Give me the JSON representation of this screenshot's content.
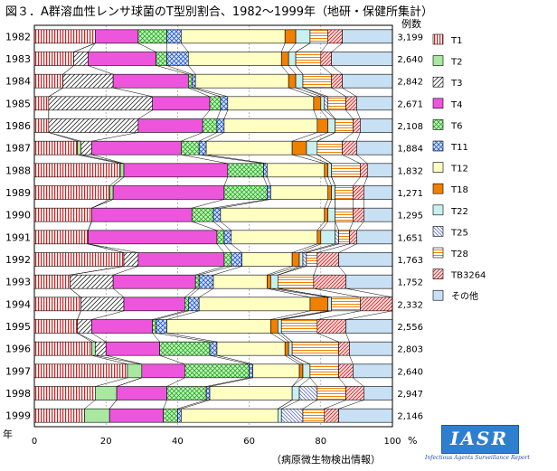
{
  "logo": {
    "text": "IASR",
    "subtitle": "Infectious Agents Surveillance Report"
  },
  "chart_data": {
    "type": "bar",
    "orientation": "horizontal",
    "stacked": "percent",
    "title": "図３．A群溶血性レンサ球菌のT型別割合、1982～1999年（地研・保健所集計）",
    "row_axis_label": "年",
    "count_header": "例数",
    "xlabel": "%",
    "source_note": "（病原微生物検出情報）",
    "xlim": [
      0,
      100
    ],
    "xticks": [
      0,
      20,
      40,
      60,
      80,
      100
    ],
    "legend_position": "right",
    "categories": [
      "1982",
      "1983",
      "1984",
      "1985",
      "1986",
      "1987",
      "1988",
      "1989",
      "1990",
      "1991",
      "1992",
      "1993",
      "1994",
      "1995",
      "1996",
      "1997",
      "1998",
      "1999"
    ],
    "counts": [
      "3,199",
      "2,640",
      "2,842",
      "2,671",
      "2,108",
      "1,884",
      "1,832",
      "1,271",
      "1,295",
      "1,651",
      "1,763",
      "1,752",
      "2,332",
      "2,556",
      "2,803",
      "2,640",
      "2,947",
      "2,146"
    ],
    "series": [
      {
        "name": "T1",
        "pattern": "vstripe",
        "color": "#d62020",
        "values": [
          17,
          11,
          8,
          4,
          4,
          12,
          24,
          21,
          16,
          15,
          25,
          10,
          13,
          12,
          16,
          26,
          17,
          14
        ]
      },
      {
        "name": "T2",
        "pattern": "solid",
        "color": "#a8e8a0",
        "values": [
          0,
          0,
          0,
          0,
          0,
          1,
          1,
          1,
          0,
          0,
          0,
          0,
          0,
          0,
          1,
          4,
          6,
          7
        ]
      },
      {
        "name": "T3",
        "pattern": "diag",
        "color": "#333333",
        "values": [
          0,
          4,
          14,
          29,
          25,
          3,
          0,
          0,
          0,
          0,
          4,
          12,
          12,
          4,
          3,
          0,
          0,
          0
        ]
      },
      {
        "name": "T4",
        "pattern": "solid",
        "color": "#ee55dd",
        "values": [
          12,
          19,
          21,
          16,
          18,
          25,
          29,
          31,
          28,
          36,
          24,
          23,
          17,
          17,
          15,
          12,
          14,
          15
        ]
      },
      {
        "name": "T6",
        "pattern": "cross",
        "color": "#22aa22",
        "values": [
          8,
          3,
          1,
          3,
          4,
          5,
          10,
          12,
          6,
          2,
          2,
          1,
          1,
          1,
          14,
          18,
          11,
          4
        ]
      },
      {
        "name": "T11",
        "pattern": "cross",
        "color": "#2255cc",
        "values": [
          4,
          6,
          1,
          2,
          2,
          2,
          1,
          1,
          2,
          2,
          3,
          4,
          3,
          3,
          2,
          1,
          1,
          1
        ]
      },
      {
        "name": "T12",
        "pattern": "solid",
        "color": "#ffffc4",
        "values": [
          29,
          26,
          26,
          24,
          26,
          24,
          16,
          16,
          29,
          24,
          14,
          15,
          31,
          29,
          19,
          13,
          23,
          27
        ]
      },
      {
        "name": "T18",
        "pattern": "solid",
        "color": "#f08000",
        "values": [
          3,
          2,
          2,
          2,
          3,
          4,
          1,
          1,
          1,
          1,
          2,
          1,
          5,
          2,
          1,
          1,
          0,
          0
        ]
      },
      {
        "name": "T22",
        "pattern": "solid",
        "color": "#c8f0f0",
        "values": [
          4,
          2,
          2,
          1,
          2,
          3,
          1,
          1,
          2,
          4,
          1,
          2,
          1,
          1,
          1,
          2,
          2,
          1
        ]
      },
      {
        "name": "T25",
        "pattern": "diag",
        "color": "#6677cc",
        "values": [
          0,
          0,
          0,
          1,
          0,
          0,
          0,
          0,
          0,
          1,
          1,
          0,
          0,
          0,
          0,
          0,
          5,
          6
        ]
      },
      {
        "name": "T28",
        "pattern": "hstripe",
        "color": "#f08000",
        "values": [
          5,
          7,
          8,
          5,
          5,
          7,
          8,
          5,
          5,
          3,
          3,
          10,
          8,
          10,
          13,
          8,
          8,
          6
        ]
      },
      {
        "name": "TB3264",
        "pattern": "diag",
        "color": "#d62020",
        "values": [
          4,
          3,
          3,
          3,
          2,
          4,
          2,
          3,
          3,
          2,
          6,
          9,
          9,
          8,
          3,
          4,
          5,
          4
        ]
      },
      {
        "name": "その他",
        "pattern": "solid",
        "color": "#c8e0f4",
        "values": [
          14,
          17,
          14,
          10,
          9,
          10,
          7,
          8,
          8,
          10,
          15,
          13,
          0,
          13,
          12,
          11,
          8,
          15
        ]
      }
    ]
  }
}
